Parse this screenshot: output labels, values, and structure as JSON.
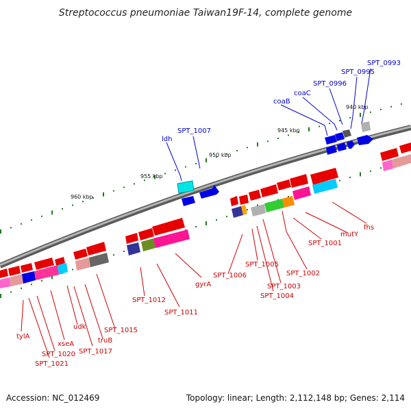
{
  "title": "Streptococcus pneumoniae Taiwan19F-14, complete genome",
  "footer": {
    "accession": "Accession: NC_012469",
    "summary": "Topology: linear; Length: 2,112,148 bp; Genes: 2,114"
  },
  "colors": {
    "backbone": "#8c8c8c",
    "forward_labels": "#0000cc",
    "reverse_labels": "#cc0000",
    "tick": "#1a7a1a",
    "forward_gene": "#0000e6",
    "reverse_gene": "#e60000"
  },
  "scale_labels": [
    {
      "id": "kbp-940",
      "text": "940 kbp"
    },
    {
      "id": "kbp-945",
      "text": "945 kbp"
    },
    {
      "id": "kbp-950",
      "text": "950 kbp"
    },
    {
      "id": "kbp-955",
      "text": "955 kbp"
    },
    {
      "id": "kbp-960",
      "text": "960 kbp"
    }
  ],
  "forward_labels": [
    {
      "id": "SPT_0993",
      "text": "SPT_0993"
    },
    {
      "id": "SPT_0995",
      "text": "SPT_0995"
    },
    {
      "id": "SPT_0996",
      "text": "SPT_0996"
    },
    {
      "id": "coaC",
      "text": "coaC"
    },
    {
      "id": "coaB",
      "text": "coaB"
    },
    {
      "id": "SPT_1007",
      "text": "SPT_1007"
    },
    {
      "id": "ldh",
      "text": "ldh"
    }
  ],
  "reverse_labels": [
    {
      "id": "fhs",
      "text": "fhs"
    },
    {
      "id": "mutY",
      "text": "mutY"
    },
    {
      "id": "SPT_1001",
      "text": "SPT_1001"
    },
    {
      "id": "SPT_1002",
      "text": "SPT_1002"
    },
    {
      "id": "SPT_1003",
      "text": "SPT_1003"
    },
    {
      "id": "SPT_1004",
      "text": "SPT_1004"
    },
    {
      "id": "SPT_1005",
      "text": "SPT_1005"
    },
    {
      "id": "SPT_1006",
      "text": "SPT_1006"
    },
    {
      "id": "gyrA",
      "text": "gyrA"
    },
    {
      "id": "SPT_1011",
      "text": "SPT_1011"
    },
    {
      "id": "SPT_1012",
      "text": "SPT_1012"
    },
    {
      "id": "SPT_1015",
      "text": "SPT_1015"
    },
    {
      "id": "truB",
      "text": "truB"
    },
    {
      "id": "SPT_1017",
      "text": "SPT_1017"
    },
    {
      "id": "udk",
      "text": "udk"
    },
    {
      "id": "xseA",
      "text": "xseA"
    },
    {
      "id": "SPT_1020",
      "text": "SPT_1020"
    },
    {
      "id": "SPT_1021",
      "text": "SPT_1021"
    },
    {
      "id": "tylA",
      "text": "tylA"
    }
  ]
}
